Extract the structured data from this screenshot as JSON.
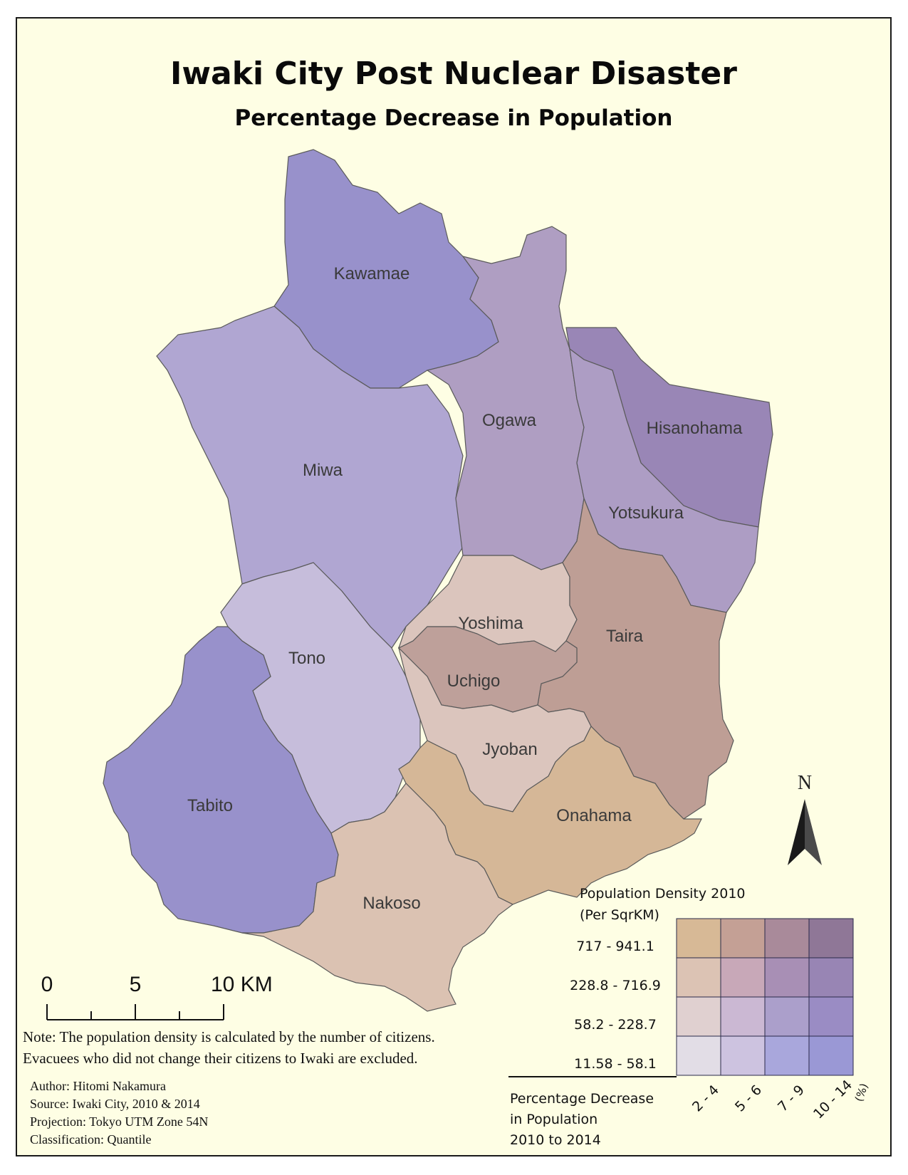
{
  "title": "Iwaki City Post Nuclear Disaster",
  "subtitle": "Percentage Decrease in Population",
  "regions": [
    {
      "name": "Kawamae",
      "fill": "#9891cb"
    },
    {
      "name": "Miwa",
      "fill": "#b0a6d2"
    },
    {
      "name": "Ogawa",
      "fill": "#af9ec2"
    },
    {
      "name": "Hisanohama",
      "fill": "#9986b6"
    },
    {
      "name": "Yotsukura",
      "fill": "#ad9dc4"
    },
    {
      "name": "Tono",
      "fill": "#c6bddb"
    },
    {
      "name": "Tabito",
      "fill": "#9891cb"
    },
    {
      "name": "Yoshima",
      "fill": "#dbc5bd"
    },
    {
      "name": "Taira",
      "fill": "#be9e95"
    },
    {
      "name": "Uchigo",
      "fill": "#bea09a"
    },
    {
      "name": "Jyoban",
      "fill": "#dbc5bd"
    },
    {
      "name": "Onahama",
      "fill": "#d5b797"
    },
    {
      "name": "Nakoso",
      "fill": "#dbc2b2"
    }
  ],
  "north_arrow": {
    "label": "N"
  },
  "scale_bar": {
    "ticks": [
      "0",
      "5",
      "10 KM"
    ]
  },
  "note": {
    "line1": "Note: The population density is calculated by the number of citizens.",
    "line2": "Evacuees who did not change their citizens to Iwaki are excluded."
  },
  "credits": {
    "author": "Author: Hitomi Nakamura",
    "source": "Source: Iwaki City, 2010 & 2014",
    "projection": "Projection: Tokyo UTM Zone 54N",
    "classification": "Classification: Quantile"
  },
  "legend": {
    "density_title": "Population Density  2010",
    "density_unit": "(Per SqrKM)",
    "density_classes": [
      "717 - 941.1",
      "228.8 - 716.9",
      "58.2 - 228.7",
      "11.58 - 58.1"
    ],
    "decrease_classes": [
      "2 - 4",
      "5 - 6",
      "7 - 9",
      "10 - 14"
    ],
    "decrease_unit": "(%)",
    "decrease_title_1": "Percentage Decrease",
    "decrease_title_2": "in Population",
    "decrease_title_3": "2010 to 2014",
    "colors": [
      [
        "#d7b996",
        "#c4a095",
        "#a98a9a",
        "#8f7797"
      ],
      [
        "#dcc3b4",
        "#c8a8b8",
        "#a88fb5",
        "#9885b4"
      ],
      [
        "#e0d0d0",
        "#cbb8d3",
        "#ab9fcb",
        "#9a8cc4"
      ],
      [
        "#e2dde6",
        "#cdc3e0",
        "#a9a7dc",
        "#9a98d5"
      ]
    ]
  }
}
